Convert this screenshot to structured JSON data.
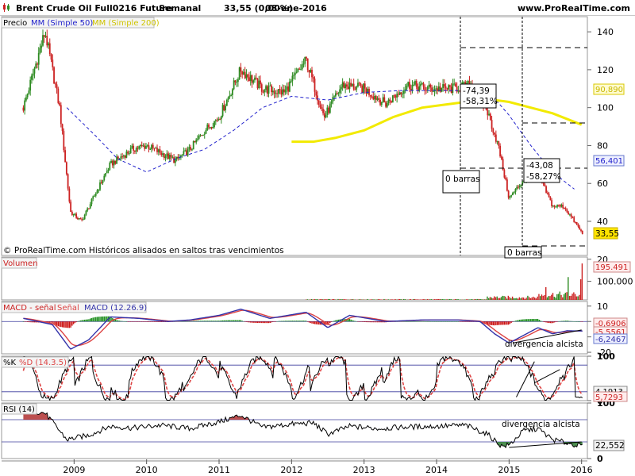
{
  "header": {
    "title": "Brent Crude Oil Full0216 Future",
    "period": "Semanal",
    "price_change": "33,55 (0,00%)",
    "date": "08-ene-2016",
    "site": "www.ProRealTime.com"
  },
  "colors": {
    "candle_up": "#2e8b22",
    "candle_down": "#cc2222",
    "ma50": "#2222cc",
    "ma200": "#f2ea00",
    "macd_line": "#3333aa",
    "signal_line": "#dd4444",
    "hist_up": "#1f8f1f",
    "hist_down": "#cc1111",
    "stoch_k": "#000000",
    "stoch_d": "#dd4444",
    "rsi_line": "#000000",
    "rsi_oversold_fill": "#2e7d32",
    "rsi_overbought_fill": "#b03030",
    "level_line": "#3b3b9e"
  },
  "price_panel": {
    "legend": {
      "price": "Precio",
      "ma50": "MM (Simple 50)",
      "ma200": "MM (Simple 200)"
    },
    "footnote": "© ProRealTime.com Históricos alisados en saltos tras vencimientos",
    "annotations": [
      {
        "value": "-74,39",
        "pct": "-58,31%",
        "bars": "0 barras"
      },
      {
        "value": "-43,08",
        "pct": "-58,27%",
        "bars": "0 barras"
      }
    ],
    "value_labels": {
      "ma200": "90,890",
      "ma50": "56,401",
      "last": "33,55"
    }
  },
  "volume_panel": {
    "label": "Volumen",
    "last_label": "195.491"
  },
  "macd_panel": {
    "label_diff": "MACD - señal",
    "label_signal": "Señal",
    "label_macd": "MACD (12.26.9)",
    "annotation": "divergencia alcista",
    "values": {
      "v1": "-0,6906",
      "v2": "-5,5561",
      "v3": "-6,2467"
    }
  },
  "stoch_panel": {
    "label_k": "%K",
    "label_d": "%D (14.3.5)",
    "values": {
      "v1": "4,1913",
      "v2": "5,7293"
    }
  },
  "rsi_panel": {
    "label": "RSI (14)",
    "annotation": "divergencia alcista",
    "value": "22,552"
  },
  "chart_data": {
    "type": "candlestick",
    "title": "Brent Crude Oil Full0216 Future",
    "x_axis": {
      "tick_labels": [
        "2009",
        "2010",
        "2011",
        "2012",
        "2013",
        "2014",
        "2015",
        "2016"
      ]
    },
    "panels": [
      {
        "name": "Precio",
        "ylim": [
          22,
          148
        ],
        "ticks": [
          20,
          40,
          60,
          80,
          100,
          120,
          140
        ],
        "series": [
          {
            "name": "Precio",
            "x": [
              2008.3,
              2008.6,
              2008.8,
              2008.95,
              2009.1,
              2009.3,
              2009.5,
              2009.8,
              2010.0,
              2010.4,
              2010.6,
              2010.8,
              2011.0,
              2011.3,
              2011.6,
              2011.9,
              2012.2,
              2012.45,
              2012.7,
              2013.0,
              2013.3,
              2013.6,
              2013.9,
              2014.2,
              2014.5,
              2014.7,
              2014.85,
              2015.0,
              2015.2,
              2015.4,
              2015.6,
              2015.75,
              2015.9,
              2016.02
            ],
            "y": [
              100,
              140,
              100,
              45,
              40,
              55,
              70,
              78,
              80,
              72,
              78,
              88,
              95,
              120,
              110,
              108,
              125,
              95,
              112,
              110,
              102,
              112,
              110,
              110,
              112,
              98,
              80,
              52,
              62,
              65,
              48,
              48,
              40,
              33
            ]
          },
          {
            "name": "MM (Simple 50)",
            "x": [
              2008.9,
              2009.3,
              2009.6,
              2010.0,
              2010.4,
              2010.8,
              2011.2,
              2011.6,
              2012.0,
              2012.5,
              2013.0,
              2013.5,
              2014.0,
              2014.5,
              2014.75,
              2015.0,
              2015.3,
              2015.6,
              2015.9
            ],
            "y": [
              100,
              85,
              73,
              66,
              73,
              78,
              88,
              100,
              106,
              104,
              108,
              109,
              109,
              109,
              107,
              96,
              80,
              66,
              57
            ]
          },
          {
            "name": "MM (Simple 200)",
            "x": [
              2012.0,
              2012.3,
              2012.6,
              2013.0,
              2013.4,
              2013.8,
              2014.2,
              2014.6,
              2014.8,
              2015.0,
              2015.3,
              2015.6,
              2016.0
            ],
            "y": [
              82,
              82,
              84,
              88,
              95,
              100,
              102,
              104,
              104,
              103,
              100,
              97,
              91
            ]
          }
        ]
      },
      {
        "name": "Volumen",
        "ylim": [
          0,
          230000
        ],
        "ticks": [
          100000
        ],
        "last": 195491
      },
      {
        "name": "MACD (12.26.9)",
        "ylim": [
          -21,
          13
        ],
        "ticks": [
          10,
          0,
          -10,
          -20
        ],
        "last": {
          "macd_minus_signal": -0.6906,
          "signal": -5.5561,
          "macd": -6.2467
        }
      },
      {
        "name": "%K / %D (14.3.5)",
        "ylim": [
          0,
          100
        ],
        "ticks": [
          0,
          100
        ],
        "levels": [
          20,
          80
        ],
        "last": {
          "k": 4.1913,
          "d": 5.7293
        }
      },
      {
        "name": "RSI (14)",
        "ylim": [
          0,
          100
        ],
        "ticks": [
          0,
          100
        ],
        "levels": [
          30,
          70
        ],
        "series": [
          {
            "name": "RSI (14)",
            "x": [
              2008.3,
              2008.6,
              2008.9,
              2009.2,
              2009.5,
              2009.8,
              2010.2,
              2010.6,
              2011.0,
              2011.3,
              2011.6,
              2012.0,
              2012.3,
              2012.5,
              2012.8,
              2013.2,
              2013.6,
              2014.0,
              2014.4,
              2014.7,
              2014.9,
              2015.0,
              2015.2,
              2015.4,
              2015.6,
              2015.8,
              2016.02
            ],
            "y": [
              88,
              82,
              34,
              42,
              58,
              55,
              60,
              54,
              66,
              78,
              56,
              62,
              64,
              44,
              58,
              54,
              57,
              58,
              60,
              44,
              22,
              24,
              50,
              54,
              34,
              28,
              22
            ]
          }
        ],
        "last": 22.552
      }
    ]
  }
}
